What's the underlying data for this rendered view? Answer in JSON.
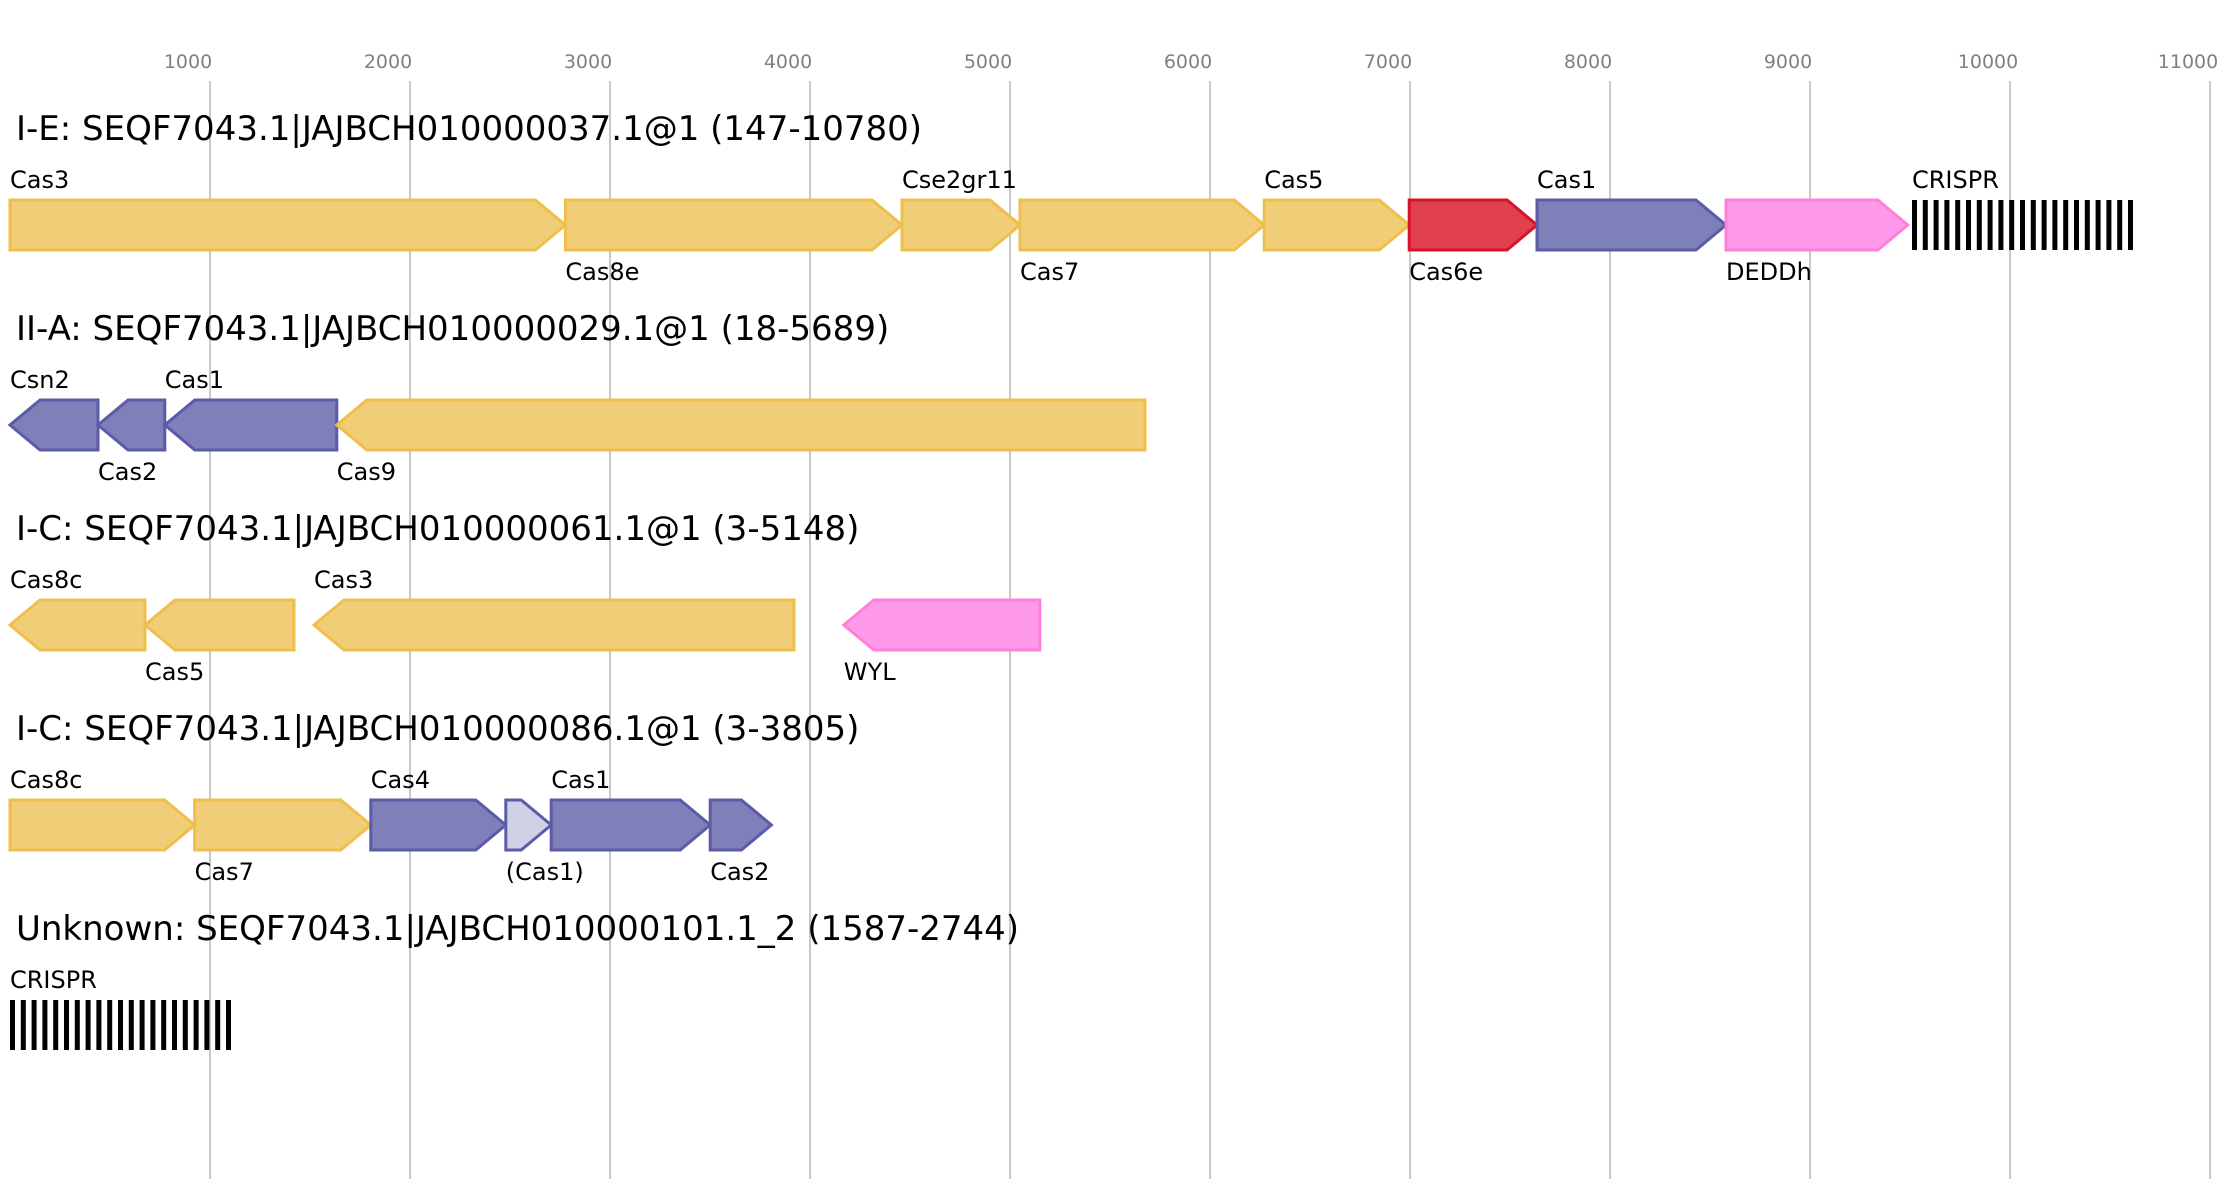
{
  "axis": {
    "xlim": [
      0,
      11000
    ],
    "xticks": [
      1000,
      2000,
      3000,
      4000,
      5000,
      6000,
      7000,
      8000,
      9000,
      10000,
      11000
    ]
  },
  "tracks": [
    {
      "title": "I-E: SEQF7043.1|JAJBCH010000037.1@1 (147-10780)",
      "genes": [
        {
          "label": "Cas3",
          "start": 0,
          "end": 2777,
          "strand": "+",
          "color": "yellow"
        },
        {
          "label": "Cas8e",
          "start": 2777,
          "end": 4460,
          "strand": "+",
          "color": "yellow"
        },
        {
          "label": "Cse2gr11",
          "start": 4460,
          "end": 5050,
          "strand": "+",
          "color": "yellow"
        },
        {
          "label": "Cas7",
          "start": 5050,
          "end": 6271,
          "strand": "+",
          "color": "yellow"
        },
        {
          "label": "Cas5",
          "start": 6271,
          "end": 6996,
          "strand": "+",
          "color": "yellow"
        },
        {
          "label": "Cas6e",
          "start": 6996,
          "end": 7635,
          "strand": "+",
          "color": "red"
        },
        {
          "label": "Cas1",
          "start": 7635,
          "end": 8580,
          "strand": "+",
          "color": "purple"
        },
        {
          "label": "DEDDh",
          "start": 8580,
          "end": 9489,
          "strand": "+",
          "color": "pink"
        },
        {
          "label": "CRISPR",
          "start": 9510,
          "end": 10639,
          "strand": "crispr",
          "color": "black"
        }
      ]
    },
    {
      "title": "II-A: SEQF7043.1|JAJBCH010000029.1@1 (18-5689)",
      "genes": [
        {
          "label": "Csn2",
          "start": 0,
          "end": 440,
          "strand": "-",
          "color": "purple"
        },
        {
          "label": "Cas2",
          "start": 440,
          "end": 774,
          "strand": "-",
          "color": "purple"
        },
        {
          "label": "Cas1",
          "start": 774,
          "end": 1634,
          "strand": "-",
          "color": "purple"
        },
        {
          "label": "Cas9",
          "start": 1634,
          "end": 5675,
          "strand": "-",
          "color": "yellow"
        }
      ]
    },
    {
      "title": "I-C: SEQF7043.1|JAJBCH010000061.1@1 (3-5148)",
      "genes": [
        {
          "label": "Cas8c",
          "start": 0,
          "end": 675,
          "strand": "-",
          "color": "yellow"
        },
        {
          "label": "Cas5",
          "start": 675,
          "end": 1420,
          "strand": "-",
          "color": "yellow"
        },
        {
          "label": "Cas3",
          "start": 1520,
          "end": 3920,
          "strand": "-",
          "color": "yellow"
        },
        {
          "label": "WYL",
          "start": 4169,
          "end": 5149,
          "strand": "-",
          "color": "pink"
        }
      ]
    },
    {
      "title": "I-C: SEQF7043.1|JAJBCH010000086.1@1 (3-3805)",
      "genes": [
        {
          "label": "Cas8c",
          "start": 0,
          "end": 923,
          "strand": "+",
          "color": "yellow"
        },
        {
          "label": "Cas7",
          "start": 923,
          "end": 1804,
          "strand": "+",
          "color": "yellow"
        },
        {
          "label": "Cas4",
          "start": 1804,
          "end": 2479,
          "strand": "+",
          "color": "purple"
        },
        {
          "label": "(Cas1)",
          "start": 2479,
          "end": 2706,
          "strand": "+",
          "color": "lightpurple"
        },
        {
          "label": "Cas1",
          "start": 2706,
          "end": 3501,
          "strand": "+",
          "color": "purple"
        },
        {
          "label": "Cas2",
          "start": 3501,
          "end": 3807,
          "strand": "+",
          "color": "purple"
        }
      ]
    },
    {
      "title": "Unknown: SEQF7043.1|JAJBCH010000101.1_2 (1587-2744)",
      "genes": [
        {
          "label": "CRISPR",
          "start": 0,
          "end": 1158,
          "strand": "crispr",
          "color": "black"
        }
      ]
    }
  ]
}
